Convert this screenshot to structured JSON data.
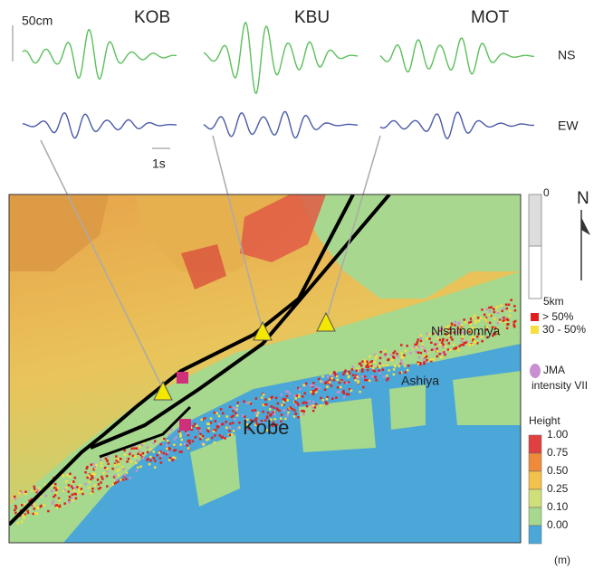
{
  "stations": [
    "KOB",
    "KBU",
    "MOT"
  ],
  "components": [
    "NS",
    "EW"
  ],
  "scale_bar": {
    "amplitude": "50cm",
    "time": "1s"
  },
  "distance_scale": {
    "start": "0",
    "end": "5km"
  },
  "north": "N",
  "damage_legend": [
    "> 50%",
    "30 - 50%"
  ],
  "jma_legend": [
    "JMA",
    "intensity VII"
  ],
  "places": [
    "Nishinomiya",
    "Ashiya",
    "Kobe"
  ],
  "height_legend": {
    "title": "Height",
    "labels": [
      "1.00",
      "0.75",
      "0.50",
      "0.25",
      "0.10",
      "0.00"
    ],
    "unit": "(m)"
  }
}
